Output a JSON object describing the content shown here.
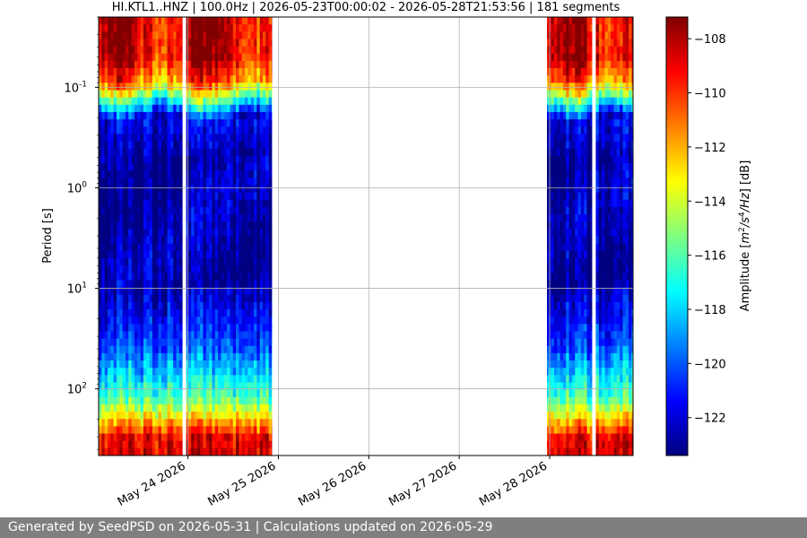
{
  "chart_data": {
    "type": "heatmap",
    "title": "HI.KTL1..HNZ | 100.0Hz | 2026-05-23T00:00:02 - 2026-05-28T21:53:56 | 181 segments",
    "ylabel": "Period [s]",
    "colorbar_label": "Amplitude [m²/s⁴/Hz] [dB]",
    "colorbar_label_parts": {
      "pre": "Amplitude [",
      "m": "m",
      "two": "2",
      "s": "/s",
      "four": "4",
      "hz": "/Hz",
      "post": "] [dB]"
    },
    "x_tick_labels": [
      "May 24 2026",
      "May 25 2026",
      "May 26 2026",
      "May 27 2026",
      "May 28 2026"
    ],
    "x_range_days": [
      -0.988,
      4.922
    ],
    "y_scale": "log",
    "y_inverted": true,
    "y_ticks": [
      {
        "exp": "-1",
        "value": 0.1
      },
      {
        "exp": "0",
        "value": 1
      },
      {
        "exp": "1",
        "value": 10
      },
      {
        "exp": "2",
        "value": 100
      }
    ],
    "y_range": [
      0.02,
      460
    ],
    "colorbar_ticks": [
      -108,
      -110,
      -112,
      -114,
      -116,
      -118,
      -120,
      -122
    ],
    "color_range": [
      -123.4,
      -107.2
    ],
    "colormap": "jet",
    "grid": true,
    "data_gaps": [
      {
        "start": 0.95,
        "end": 3.95,
        "note": "no data"
      }
    ],
    "segment_gaps": [
      -0.04,
      0.95,
      3.95,
      4.49
    ]
  },
  "footer": {
    "text": "Generated by SeedPSD on 2026-05-31 | Calculations updated on 2026-05-29"
  }
}
